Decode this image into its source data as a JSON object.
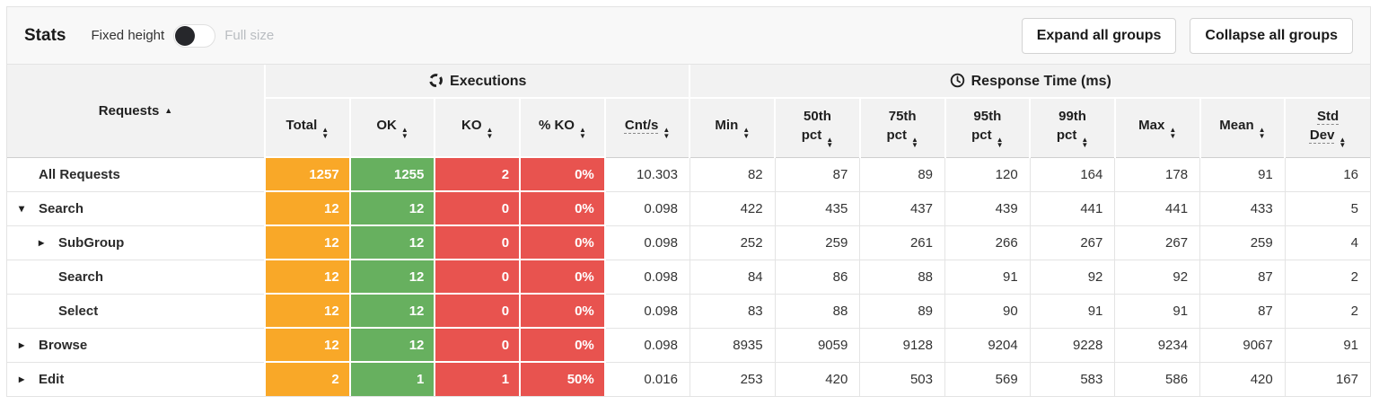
{
  "toolbar": {
    "title": "Stats",
    "fixed_height_label": "Fixed height",
    "full_size_label": "Full size",
    "expand_all_label": "Expand all groups",
    "collapse_all_label": "Collapse all groups"
  },
  "colors": {
    "orange": "#f9a828",
    "green": "#67b05f",
    "red": "#e8534f"
  },
  "table": {
    "requests_header": "Requests",
    "requests_sort_indicator": "▲",
    "executions_group_header": "Executions",
    "response_time_group_header": "Response Time (ms)",
    "columns": [
      {
        "key": "total",
        "label": "Total",
        "colored": "orange"
      },
      {
        "key": "ok",
        "label": "OK",
        "colored": "green"
      },
      {
        "key": "ko",
        "label": "KO",
        "colored": "red"
      },
      {
        "key": "ko_pct",
        "label": "% KO",
        "colored": "red"
      },
      {
        "key": "cnts",
        "label": "Cnt/s",
        "dashed": true
      },
      {
        "key": "min",
        "label": "Min"
      },
      {
        "key": "p50",
        "label": "50th pct",
        "wrap": true
      },
      {
        "key": "p75",
        "label": "75th pct",
        "wrap": true
      },
      {
        "key": "p95",
        "label": "95th pct",
        "wrap": true
      },
      {
        "key": "p99",
        "label": "99th pct",
        "wrap": true
      },
      {
        "key": "max",
        "label": "Max"
      },
      {
        "key": "mean",
        "label": "Mean"
      },
      {
        "key": "stddev",
        "label": "Std Dev",
        "wrap": true,
        "dashed": true
      }
    ],
    "rows": [
      {
        "name": "All Requests",
        "arrow": "none",
        "indent": 0,
        "total": "1257",
        "ok": "1255",
        "ko": "2",
        "ko_pct": "0%",
        "cnts": "10.303",
        "min": "82",
        "p50": "87",
        "p75": "89",
        "p95": "120",
        "p99": "164",
        "max": "178",
        "mean": "91",
        "stddev": "16"
      },
      {
        "name": "Search",
        "arrow": "down",
        "indent": 0,
        "total": "12",
        "ok": "12",
        "ko": "0",
        "ko_pct": "0%",
        "cnts": "0.098",
        "min": "422",
        "p50": "435",
        "p75": "437",
        "p95": "439",
        "p99": "441",
        "max": "441",
        "mean": "433",
        "stddev": "5"
      },
      {
        "name": "SubGroup",
        "arrow": "right",
        "indent": 1,
        "total": "12",
        "ok": "12",
        "ko": "0",
        "ko_pct": "0%",
        "cnts": "0.098",
        "min": "252",
        "p50": "259",
        "p75": "261",
        "p95": "266",
        "p99": "267",
        "max": "267",
        "mean": "259",
        "stddev": "4"
      },
      {
        "name": "Search",
        "arrow": "none",
        "indent": 1,
        "total": "12",
        "ok": "12",
        "ko": "0",
        "ko_pct": "0%",
        "cnts": "0.098",
        "min": "84",
        "p50": "86",
        "p75": "88",
        "p95": "91",
        "p99": "92",
        "max": "92",
        "mean": "87",
        "stddev": "2"
      },
      {
        "name": "Select",
        "arrow": "none",
        "indent": 1,
        "total": "12",
        "ok": "12",
        "ko": "0",
        "ko_pct": "0%",
        "cnts": "0.098",
        "min": "83",
        "p50": "88",
        "p75": "89",
        "p95": "90",
        "p99": "91",
        "max": "91",
        "mean": "87",
        "stddev": "2"
      },
      {
        "name": "Browse",
        "arrow": "right",
        "indent": 0,
        "total": "12",
        "ok": "12",
        "ko": "0",
        "ko_pct": "0%",
        "cnts": "0.098",
        "min": "8935",
        "p50": "9059",
        "p75": "9128",
        "p95": "9204",
        "p99": "9228",
        "max": "9234",
        "mean": "9067",
        "stddev": "91"
      },
      {
        "name": "Edit",
        "arrow": "right",
        "indent": 0,
        "total": "2",
        "ok": "1",
        "ko": "1",
        "ko_pct": "50%",
        "cnts": "0.016",
        "min": "253",
        "p50": "420",
        "p75": "503",
        "p95": "569",
        "p99": "583",
        "max": "586",
        "mean": "420",
        "stddev": "167"
      }
    ]
  }
}
